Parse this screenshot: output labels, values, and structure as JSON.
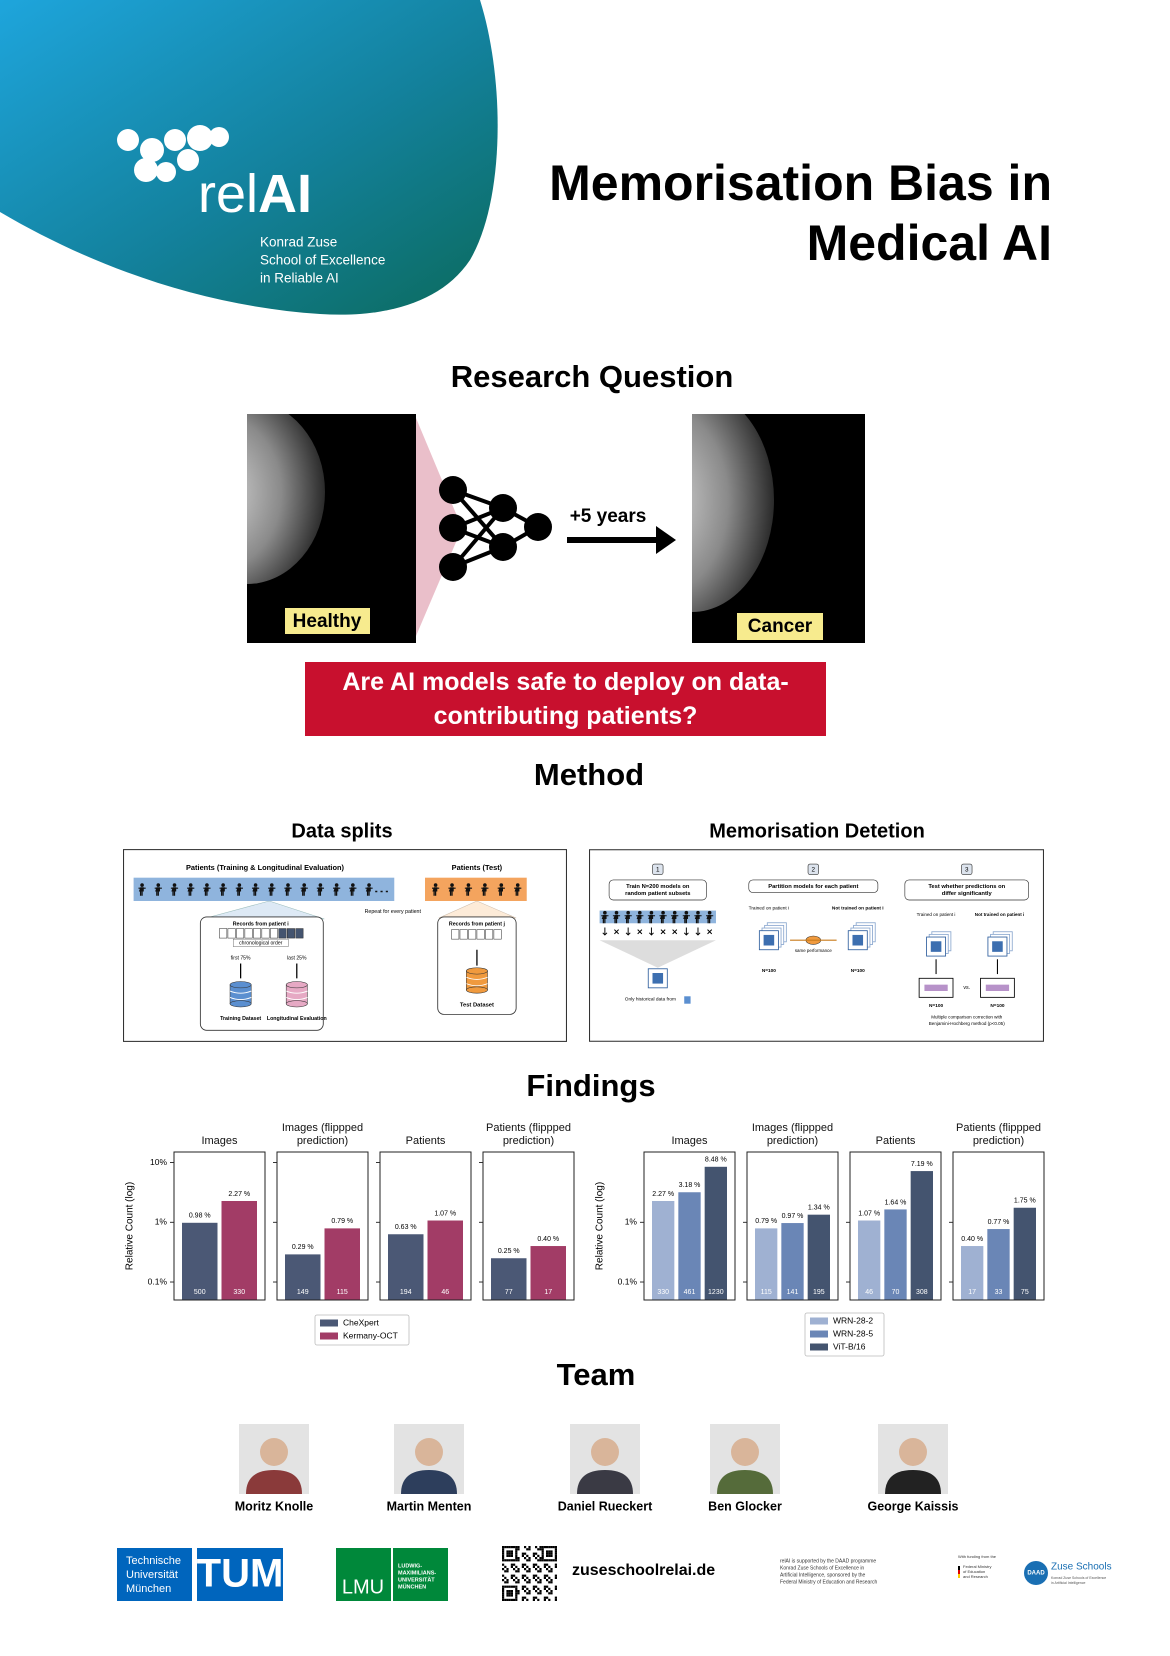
{
  "header": {
    "logo_text": [
      "rel",
      "AI"
    ],
    "logo_subtitle": [
      "Konrad Zuse",
      "School of Excellence",
      "in Reliable AI"
    ],
    "title": [
      "Memorisation Bias in",
      "Medical AI"
    ]
  },
  "research_question": {
    "heading": "Research Question",
    "before_label": "Healthy",
    "interval": "+5 years",
    "after_label": "Cancer",
    "question": "Are AI models safe to deploy on data-contributing patients?"
  },
  "method": {
    "heading": "Method",
    "data_splits": {
      "title": "Data splits",
      "train_patients": "Patients (Training & Longitudinal Evaluation)",
      "test_patients": "Patients (Test)",
      "repeat": "Repeat for every patient",
      "records_i": "Records from patient i",
      "order": "chronological order",
      "first": "first 75%",
      "last": "last 25%",
      "training": "Training Dataset",
      "longitudinal": "Longitudinal Evaluation",
      "records_j": "Records from patient j",
      "test": "Test Dataset"
    },
    "memorisation": {
      "title": "Memorisation Detetion",
      "steps": [
        {
          "number": "1",
          "label": [
            "Train N=200 models on",
            "random patient subsets"
          ]
        },
        {
          "number": "2",
          "label": [
            "Partition models for each patient"
          ]
        },
        {
          "number": "3",
          "label": [
            "Test whether predictions on",
            "differ significantly"
          ]
        }
      ],
      "historical": "Only historical data from",
      "trained": "Trained on patient i",
      "not_trained": "Not trained on patient i",
      "same": "same performance",
      "n": "N=100",
      "vs": "vs.",
      "correction": [
        "Multiple comparison correction with",
        "Benjamini-Hochberg method (p<0.05)"
      ]
    }
  },
  "findings": {
    "heading": "Findings"
  },
  "chart_data": [
    {
      "type": "bar",
      "ylabel": "Relative Count (log)",
      "log_scale": true,
      "legend": "bottom",
      "ylim": [
        0.05,
        15
      ],
      "yticks": [
        {
          "value": 0.1,
          "label": "0.1%"
        },
        {
          "value": 1,
          "label": "1%"
        },
        {
          "value": 10,
          "label": "10%"
        }
      ],
      "categories": [
        "Images",
        "Images (flippped prediction)",
        "Patients",
        "Patients (flippped prediction)"
      ],
      "series": [
        {
          "name": "CheXpert",
          "color": "#4b5875",
          "values": [
            0.98,
            0.29,
            0.63,
            0.25
          ],
          "value_labels": [
            "0.98 %",
            "0.29 %",
            "0.63 %",
            "0.25 %"
          ],
          "counts": [
            500,
            149,
            194,
            77
          ]
        },
        {
          "name": "Kermany-OCT",
          "color": "#a23c66",
          "values": [
            2.27,
            0.79,
            1.07,
            0.4
          ],
          "value_labels": [
            "2.27 %",
            "0.79 %",
            "1.07 %",
            "0.40 %"
          ],
          "counts": [
            330,
            115,
            46,
            17
          ]
        }
      ]
    },
    {
      "type": "bar",
      "ylabel": "Relative Count (log)",
      "log_scale": true,
      "legend": "bottom",
      "ylim": [
        0.05,
        15
      ],
      "yticks": [
        {
          "value": 0.1,
          "label": "0.1%"
        },
        {
          "value": 1,
          "label": "1%"
        }
      ],
      "categories": [
        "Images",
        "Images (flippped prediction)",
        "Patients",
        "Patients (flippped prediction)"
      ],
      "series": [
        {
          "name": "WRN-28-2",
          "color": "#9fb1d2",
          "values": [
            2.27,
            0.79,
            1.07,
            0.4
          ],
          "value_labels": [
            "2.27 %",
            "0.79 %",
            "1.07 %",
            "0.40 %"
          ],
          "counts": [
            330,
            115,
            46,
            17
          ]
        },
        {
          "name": "WRN-28-5",
          "color": "#6a86b6",
          "values": [
            3.18,
            0.97,
            1.64,
            0.77
          ],
          "value_labels": [
            "3.18 %",
            "0.97 %",
            "1.64 %",
            "0.77 %"
          ],
          "counts": [
            461,
            141,
            70,
            33
          ]
        },
        {
          "name": "ViT-B/16",
          "color": "#44546f",
          "values": [
            8.48,
            1.34,
            7.19,
            1.75
          ],
          "value_labels": [
            "8.48 %",
            "1.34 %",
            "7.19 %",
            "1.75 %"
          ],
          "counts": [
            1230,
            195,
            308,
            75
          ]
        }
      ]
    }
  ],
  "team": {
    "heading": "Team",
    "members": [
      "Moritz Knolle",
      "Martin Menten",
      "Daniel Rueckert",
      "Ben Glocker",
      "George Kaissis"
    ]
  },
  "footer": {
    "tum_name": [
      "Technische",
      "Universität",
      "München"
    ],
    "tum_logo": "TUM",
    "lmu_logo": "LMU",
    "lmu_name": [
      "LUDWIG-",
      "MAXIMILIANS-",
      "UNIVERSITÄT",
      "MÜNCHEN"
    ],
    "url": "zuseschoolrelai.de",
    "support": [
      "relAI is supported by the DAAD programme",
      "Konrad Zuse Schools of Excellence in",
      "Artificial Intelligence, sponsored by the",
      "Federal Ministry of Education and Research"
    ],
    "bmbf": [
      "With funding from the",
      "Federal Ministry",
      "of Education",
      "and Research"
    ],
    "daad": "DAAD",
    "zuse": "Zuse Schools",
    "zuse_sub": [
      "Konrad Zuse Schools of Excellence",
      "in Artificial Intelligence"
    ]
  }
}
